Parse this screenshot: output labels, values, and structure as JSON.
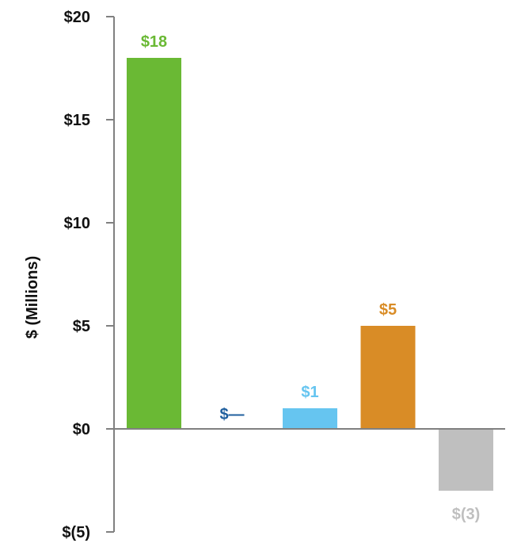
{
  "chart_data": {
    "type": "bar",
    "ylabel": "$ (Millions)",
    "ylim": [
      -5,
      20
    ],
    "yticks": [
      {
        "value": 20,
        "label": "$20"
      },
      {
        "value": 15,
        "label": "$15"
      },
      {
        "value": 10,
        "label": "$10"
      },
      {
        "value": 5,
        "label": "$5"
      },
      {
        "value": 0,
        "label": "$0"
      },
      {
        "value": -5,
        "label": "$(5)"
      }
    ],
    "bars": [
      {
        "value": 18,
        "label": "$18",
        "color": "#6ab934",
        "label_color": "#6ab934"
      },
      {
        "value": 0,
        "label": "$—",
        "color": "#1f5f9e",
        "label_color": "#1f5f9e"
      },
      {
        "value": 1,
        "label": "$1",
        "color": "#66c5f0",
        "label_color": "#66c5f0"
      },
      {
        "value": 5,
        "label": "$5",
        "color": "#d98c26",
        "label_color": "#d98c26"
      },
      {
        "value": -3,
        "label": "$(3)",
        "color": "#bfbfbf",
        "label_color": "#bfbfbf"
      }
    ],
    "grid": false,
    "legend": "none"
  }
}
